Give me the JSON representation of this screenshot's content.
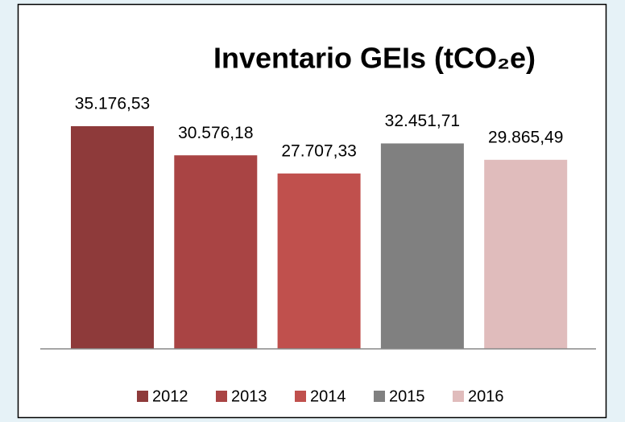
{
  "chart_data": {
    "type": "bar",
    "title": "Inventario GEIs (tCO₂e)",
    "series": [
      {
        "name": "2012",
        "color": "#8e3a3a",
        "values": [
          35176.53
        ],
        "value_labels": [
          "35.176,53"
        ]
      },
      {
        "name": "2013",
        "color": "#a94444",
        "values": [
          30576.18
        ],
        "value_labels": [
          "30.576,18"
        ]
      },
      {
        "name": "2014",
        "color": "#c0504d",
        "values": [
          27707.33
        ],
        "value_labels": [
          "27.707,33"
        ]
      },
      {
        "name": "2015",
        "color": "#808080",
        "values": [
          32451.71
        ],
        "value_labels": [
          "32.451,71"
        ]
      },
      {
        "name": "2016",
        "color": "#e0bcbc",
        "values": [
          29865.49
        ],
        "value_labels": [
          "29.865,49"
        ]
      }
    ],
    "ylim": [
      0,
      40000
    ],
    "legend": "bottom"
  }
}
